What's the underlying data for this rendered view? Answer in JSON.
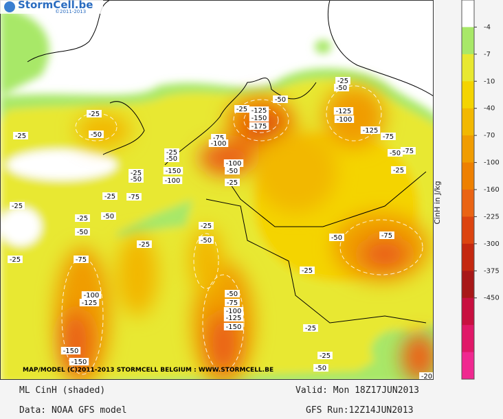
{
  "logo": {
    "name": "StormCell.be",
    "copyright": "©2011-2013"
  },
  "map": {
    "credit": "MAP/MODEL (C)2011-2013 STORMCELL BELGIUM : WWW.STORMCELL.BE",
    "contour_labels": [
      -25,
      -50,
      -25,
      -25,
      -25,
      -50,
      -25,
      -75,
      -100,
      -125,
      -150,
      -150,
      -25,
      -50,
      -75,
      -25,
      -50,
      -25,
      -50,
      -150,
      -100,
      -75,
      -100,
      -25,
      -50,
      -125,
      -150,
      -175,
      -100,
      -50,
      -25,
      -25,
      -50,
      -25,
      -50,
      -75,
      -100,
      -125,
      -150,
      -25,
      -25,
      -50,
      -75,
      -25,
      -50,
      -125,
      -100,
      -125,
      -75,
      -50,
      -75,
      -25,
      -25,
      -50,
      -20
    ]
  },
  "colorbar": {
    "title": "CinH in J/kg",
    "ticks": [
      -4,
      -7,
      -10,
      -40,
      -70,
      -100,
      -160,
      -225,
      -300,
      -375,
      -450
    ],
    "colors": [
      "#ffffff",
      "#a8e868",
      "#e8e830",
      "#f4d400",
      "#f2b800",
      "#f09c00",
      "#ee8000",
      "#ea6414",
      "#dc4410",
      "#c42810",
      "#a81818",
      "#c81040",
      "#e01868",
      "#f02890"
    ]
  },
  "footer": {
    "field": "ML CinH (shaded)",
    "valid": "Valid: Mon 18Z17JUN2013",
    "source": "Data: NOAA GFS model",
    "run": "GFS Run:12Z14JUN2013"
  }
}
